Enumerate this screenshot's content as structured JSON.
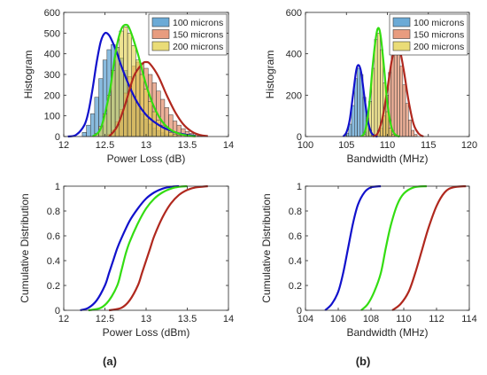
{
  "panel_labels": [
    "(a)",
    "(b)"
  ],
  "chart_data": [
    {
      "type": "histogram",
      "panel": "a",
      "xlabel": "Power Loss (dB)",
      "ylabel": "Histogram",
      "xlim": [
        12,
        14
      ],
      "ylim": [
        0,
        600
      ],
      "xticks": [
        12,
        12.5,
        13,
        13.5,
        14
      ],
      "yticks": [
        0,
        100,
        200,
        300,
        400,
        500,
        600
      ],
      "legend_position": "top-right",
      "bin_width": 0.05,
      "series": [
        {
          "name": "100 microns",
          "color": "#3a8ec8",
          "fit_color": "#1111cc",
          "x": [
            12.25,
            12.3,
            12.35,
            12.4,
            12.45,
            12.5,
            12.55,
            12.6,
            12.65,
            12.7,
            12.75,
            12.8,
            12.85,
            12.9,
            12.95,
            13.0,
            13.05,
            13.1,
            13.15,
            13.2,
            13.25,
            13.3
          ],
          "values": [
            20,
            55,
            110,
            190,
            280,
            370,
            420,
            445,
            430,
            380,
            320,
            250,
            195,
            150,
            110,
            85,
            60,
            40,
            28,
            18,
            10,
            5
          ],
          "fit_x": [
            12.05,
            12.15,
            12.25,
            12.3,
            12.35,
            12.4,
            12.45,
            12.5,
            12.55,
            12.6,
            12.65,
            12.7,
            12.8,
            12.9,
            13.0,
            13.1,
            13.2,
            13.3,
            13.4,
            13.5,
            13.6
          ],
          "fit_y": [
            0,
            8,
            55,
            120,
            230,
            360,
            460,
            500,
            490,
            450,
            400,
            340,
            240,
            160,
            105,
            70,
            45,
            28,
            15,
            8,
            3
          ]
        },
        {
          "name": "150 microns",
          "color": "#e07b54",
          "fit_color": "#b0281e",
          "x": [
            12.55,
            12.6,
            12.65,
            12.7,
            12.75,
            12.8,
            12.85,
            12.9,
            12.95,
            13.0,
            13.05,
            13.1,
            13.15,
            13.2,
            13.25,
            13.3,
            13.35,
            13.4,
            13.45,
            13.5,
            13.55,
            13.6,
            13.65,
            13.7
          ],
          "values": [
            10,
            30,
            70,
            130,
            210,
            290,
            340,
            360,
            355,
            330,
            300,
            260,
            220,
            180,
            140,
            105,
            75,
            55,
            38,
            25,
            15,
            8,
            4,
            2
          ],
          "fit_x": [
            12.55,
            12.65,
            12.75,
            12.85,
            12.95,
            13.0,
            13.05,
            13.15,
            13.25,
            13.35,
            13.45,
            13.55,
            13.65,
            13.75
          ],
          "fit_y": [
            0,
            50,
            160,
            290,
            350,
            360,
            350,
            290,
            200,
            120,
            60,
            25,
            8,
            2
          ]
        },
        {
          "name": "200 microns",
          "color": "#e3d04a",
          "fit_color": "#33dd11",
          "x": [
            12.4,
            12.45,
            12.5,
            12.55,
            12.6,
            12.65,
            12.7,
            12.75,
            12.8,
            12.85,
            12.9,
            12.95,
            13.0,
            13.05,
            13.1,
            13.15,
            13.2,
            13.25,
            13.3,
            13.35,
            13.4
          ],
          "values": [
            15,
            50,
            110,
            200,
            320,
            430,
            510,
            530,
            500,
            440,
            370,
            300,
            230,
            170,
            120,
            80,
            55,
            35,
            20,
            12,
            6
          ],
          "fit_x": [
            12.35,
            12.45,
            12.55,
            12.6,
            12.65,
            12.7,
            12.75,
            12.8,
            12.9,
            13.0,
            13.1,
            13.2,
            13.3,
            13.4,
            13.5,
            13.6
          ],
          "fit_y": [
            0,
            40,
            200,
            330,
            450,
            520,
            540,
            520,
            400,
            250,
            140,
            70,
            32,
            14,
            5,
            1
          ]
        }
      ]
    },
    {
      "type": "histogram",
      "panel": "b",
      "xlabel": "Bandwidth (MHz)",
      "ylabel": "Histogram",
      "xlim": [
        100,
        120
      ],
      "ylim": [
        0,
        600
      ],
      "xticks": [
        100,
        105,
        110,
        115,
        120
      ],
      "yticks": [
        0,
        200,
        400,
        600
      ],
      "legend_position": "top-right",
      "bin_width": 0.35,
      "series": [
        {
          "name": "100 microns",
          "color": "#3a8ec8",
          "fit_color": "#1111cc",
          "x": [
            105.1,
            105.45,
            105.8,
            106.15,
            106.5,
            106.85,
            107.2,
            107.55,
            107.9,
            108.25
          ],
          "values": [
            15,
            60,
            150,
            280,
            330,
            300,
            190,
            90,
            30,
            8
          ],
          "fit_x": [
            104.6,
            105.0,
            105.4,
            105.8,
            106.2,
            106.5,
            106.8,
            107.2,
            107.6,
            108.0,
            108.4,
            108.8
          ],
          "fit_y": [
            0,
            20,
            80,
            200,
            320,
            345,
            310,
            190,
            80,
            22,
            4,
            0
          ]
        },
        {
          "name": "150 microns",
          "color": "#e07b54",
          "fit_color": "#b0281e",
          "x": [
            108.9,
            109.25,
            109.6,
            109.95,
            110.3,
            110.65,
            111.0,
            111.35,
            111.7,
            112.05,
            112.4,
            112.75,
            113.1,
            113.45
          ],
          "values": [
            10,
            40,
            100,
            200,
            310,
            390,
            420,
            400,
            340,
            250,
            160,
            80,
            30,
            10
          ],
          "fit_x": [
            108.2,
            108.8,
            109.4,
            110.0,
            110.5,
            111.0,
            111.5,
            112.0,
            112.6,
            113.2,
            113.8,
            114.4
          ],
          "fit_y": [
            0,
            15,
            90,
            230,
            360,
            440,
            420,
            320,
            170,
            60,
            15,
            0
          ]
        },
        {
          "name": "200 microns",
          "color": "#e3d04a",
          "fit_color": "#33dd11",
          "x": [
            107.2,
            107.55,
            107.9,
            108.25,
            108.6,
            108.95,
            109.3,
            109.65,
            110.0,
            110.35,
            110.7
          ],
          "values": [
            10,
            60,
            170,
            330,
            470,
            500,
            420,
            260,
            120,
            40,
            10
          ],
          "fit_x": [
            106.8,
            107.3,
            107.8,
            108.2,
            108.6,
            108.9,
            109.2,
            109.6,
            110.0,
            110.5,
            111.0,
            111.5
          ],
          "fit_y": [
            0,
            30,
            160,
            340,
            480,
            525,
            480,
            330,
            160,
            45,
            8,
            0
          ]
        }
      ]
    },
    {
      "type": "line",
      "panel": "a",
      "xlabel": "Power Loss (dBm)",
      "ylabel": "Cumulative Distribution",
      "xlim": [
        12,
        14
      ],
      "ylim": [
        0,
        1
      ],
      "xticks": [
        12,
        12.5,
        13,
        13.5,
        14
      ],
      "yticks": [
        0,
        0.2,
        0.4,
        0.6,
        0.8,
        1
      ],
      "series": [
        {
          "color": "#1111cc",
          "x": [
            12.2,
            12.3,
            12.4,
            12.5,
            12.55,
            12.6,
            12.65,
            12.7,
            12.8,
            12.9,
            13.0,
            13.1,
            13.2,
            13.3,
            13.4
          ],
          "y": [
            0,
            0.02,
            0.08,
            0.2,
            0.3,
            0.4,
            0.5,
            0.58,
            0.72,
            0.82,
            0.9,
            0.95,
            0.98,
            0.995,
            1
          ]
        },
        {
          "color": "#33dd11",
          "x": [
            12.3,
            12.45,
            12.55,
            12.65,
            12.7,
            12.75,
            12.8,
            12.9,
            13.0,
            13.1,
            13.2,
            13.3,
            13.4,
            13.5
          ],
          "y": [
            0,
            0.02,
            0.08,
            0.2,
            0.32,
            0.45,
            0.55,
            0.7,
            0.82,
            0.9,
            0.95,
            0.98,
            0.995,
            1
          ]
        },
        {
          "color": "#b0281e",
          "x": [
            12.55,
            12.7,
            12.8,
            12.9,
            12.95,
            13.0,
            13.05,
            13.1,
            13.2,
            13.3,
            13.4,
            13.5,
            13.6,
            13.75
          ],
          "y": [
            0,
            0.02,
            0.08,
            0.2,
            0.3,
            0.4,
            0.5,
            0.6,
            0.75,
            0.86,
            0.93,
            0.97,
            0.99,
            1
          ]
        }
      ]
    },
    {
      "type": "line",
      "panel": "b",
      "xlabel": "Bandwidth (MHz)",
      "ylabel": "Cumulative Distribution",
      "xlim": [
        104,
        114
      ],
      "ylim": [
        0,
        1
      ],
      "xticks": [
        104,
        106,
        108,
        110,
        112,
        114
      ],
      "yticks": [
        0,
        0.2,
        0.4,
        0.6,
        0.8,
        1
      ],
      "series": [
        {
          "color": "#1111cc",
          "x": [
            105.2,
            105.6,
            106.0,
            106.3,
            106.6,
            106.9,
            107.2,
            107.6,
            108.0,
            108.6
          ],
          "y": [
            0,
            0.05,
            0.15,
            0.3,
            0.5,
            0.7,
            0.85,
            0.95,
            0.99,
            1
          ]
        },
        {
          "color": "#33dd11",
          "x": [
            107.4,
            107.8,
            108.2,
            108.6,
            108.9,
            109.2,
            109.6,
            110.0,
            110.6,
            111.4
          ],
          "y": [
            0,
            0.05,
            0.15,
            0.3,
            0.5,
            0.68,
            0.85,
            0.94,
            0.99,
            1
          ]
        },
        {
          "color": "#b0281e",
          "x": [
            109.3,
            109.8,
            110.3,
            110.7,
            111.1,
            111.5,
            112.0,
            112.5,
            113.0,
            113.8
          ],
          "y": [
            0,
            0.05,
            0.15,
            0.3,
            0.48,
            0.66,
            0.84,
            0.95,
            0.99,
            1
          ]
        }
      ]
    }
  ]
}
